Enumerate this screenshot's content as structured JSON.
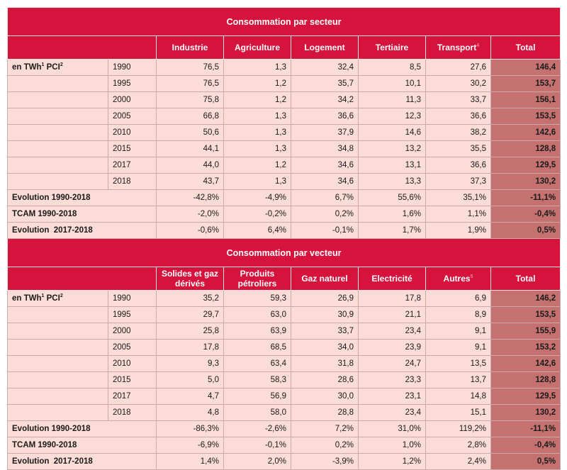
{
  "sector": {
    "title": "Consommation par secteur",
    "headers": [
      "Industrie",
      "Agriculture",
      "Logement",
      "Tertiaire",
      "Transport",
      "Total"
    ],
    "header_sup": "4",
    "unit_label": {
      "a": "en TWh",
      "sup1": "1",
      "b": " PCI",
      "sup2": "2"
    },
    "rows": [
      {
        "year": "1990",
        "values": [
          "76,5",
          "1,3",
          "32,4",
          "8,5",
          "27,6"
        ],
        "total": "146,4"
      },
      {
        "year": "1995",
        "values": [
          "76,5",
          "1,2",
          "35,7",
          "10,1",
          "30,2"
        ],
        "total": "153,7"
      },
      {
        "year": "2000",
        "values": [
          "75,8",
          "1,2",
          "34,2",
          "11,3",
          "33,7"
        ],
        "total": "156,1"
      },
      {
        "year": "2005",
        "values": [
          "66,8",
          "1,3",
          "36,6",
          "12,3",
          "36,6"
        ],
        "total": "153,5"
      },
      {
        "year": "2010",
        "values": [
          "50,6",
          "1,3",
          "37,9",
          "14,6",
          "38,2"
        ],
        "total": "142,6"
      },
      {
        "year": "2015",
        "values": [
          "44,1",
          "1,3",
          "34,8",
          "13,2",
          "35,5"
        ],
        "total": "128,8"
      },
      {
        "year": "2017",
        "values": [
          "44,0",
          "1,2",
          "34,6",
          "13,1",
          "36,6"
        ],
        "total": "129,5"
      },
      {
        "year": "2018",
        "values": [
          "43,7",
          "1,3",
          "34,6",
          "13,3",
          "37,3"
        ],
        "total": "130,2"
      }
    ],
    "stats": [
      {
        "label": "Evolution 1990-2018",
        "values": [
          "-42,8%",
          "-4,9%",
          "6,7%",
          "55,6%",
          "35,1%"
        ],
        "total": "-11,1%"
      },
      {
        "label": "TCAM 1990-2018",
        "values": [
          "-2,0%",
          "-0,2%",
          "0,2%",
          "1,6%",
          "1,1%"
        ],
        "total": "-0,4%"
      },
      {
        "label": "Evolution  2017-2018",
        "values": [
          "-0,6%",
          "6,4%",
          "-0,1%",
          "1,7%",
          "1,9%"
        ],
        "total": "0,5%"
      }
    ]
  },
  "vector": {
    "title": "Consommation par vecteur",
    "headers": [
      "Solides et gaz dérivés",
      "Produits pétroliers",
      "Gaz naturel",
      "Electricité",
      "Autres",
      "Total"
    ],
    "header_sup": "5",
    "unit_label": {
      "a": "en TWh",
      "sup1": "1",
      "b": " PCI",
      "sup2": "2"
    },
    "rows": [
      {
        "year": "1990",
        "values": [
          "35,2",
          "59,3",
          "26,9",
          "17,8",
          "6,9"
        ],
        "total": "146,2"
      },
      {
        "year": "1995",
        "values": [
          "29,7",
          "63,0",
          "30,9",
          "21,1",
          "8,9"
        ],
        "total": "153,5"
      },
      {
        "year": "2000",
        "values": [
          "25,8",
          "63,9",
          "33,7",
          "23,4",
          "9,1"
        ],
        "total": "155,9"
      },
      {
        "year": "2005",
        "values": [
          "17,8",
          "68,5",
          "34,0",
          "23,9",
          "9,1"
        ],
        "total": "153,2"
      },
      {
        "year": "2010",
        "values": [
          "9,3",
          "63,4",
          "31,8",
          "24,7",
          "13,5"
        ],
        "total": "142,6"
      },
      {
        "year": "2015",
        "values": [
          "5,0",
          "58,3",
          "28,6",
          "23,3",
          "13,7"
        ],
        "total": "128,8"
      },
      {
        "year": "2017",
        "values": [
          "4,7",
          "56,9",
          "30,0",
          "23,1",
          "14,8"
        ],
        "total": "129,5"
      },
      {
        "year": "2018",
        "values": [
          "4,8",
          "58,0",
          "28,8",
          "23,4",
          "15,1"
        ],
        "total": "130,2"
      }
    ],
    "stats": [
      {
        "label": "Evolution 1990-2018",
        "values": [
          "-86,3%",
          "-2,6%",
          "7,2%",
          "31,0%",
          "119,2%"
        ],
        "total": "-11,1%"
      },
      {
        "label": "TCAM 1990-2018",
        "values": [
          "-6,9%",
          "-0,1%",
          "0,2%",
          "1,0%",
          "2,8%"
        ],
        "total": "-0,4%"
      },
      {
        "label": "Evolution  2017-2018",
        "values": [
          "1,4%",
          "2,0%",
          "-3,9%",
          "1,2%",
          "2,4%"
        ],
        "total": "0,5%"
      }
    ]
  }
}
